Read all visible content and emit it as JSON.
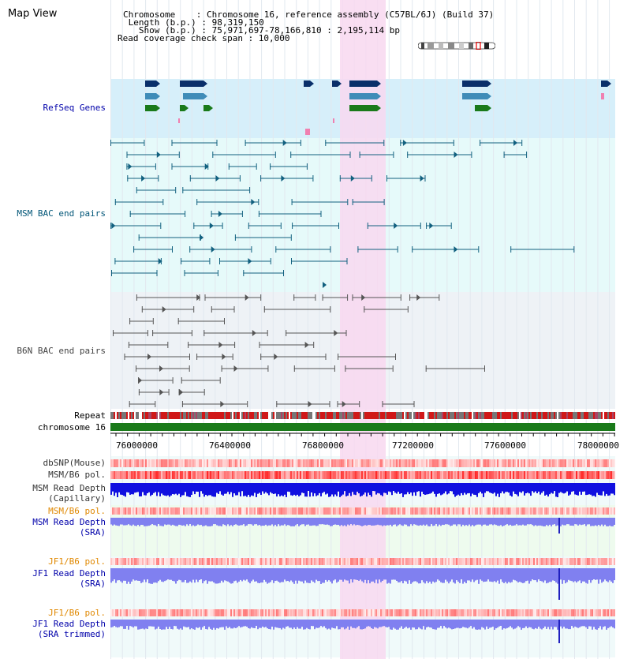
{
  "header": {
    "title": "Map View",
    "info_lines": [
      "Chromosome    : Chromosome 16, reference assembly (C57BL/6J) (Build 37)",
      " Length (b.p.) : 98,319,150",
      "   Show (b.p.) : 75,971,697-78,166,810 : 2,195,114 bp",
      "Read coverage check span : 10,000"
    ]
  },
  "tracks": {
    "refseq_label": "RefSeq Genes",
    "msm_bac_label": "MSM BAC end pairs",
    "b6n_bac_label": "B6N BAC end pairs",
    "repeat_label": "Repeat",
    "chromosome_label": "chromosome 16",
    "dbsnp_label": "dbSNP(Mouse)",
    "msm_b6_pol_label": "MSM/B6 pol.",
    "msm_read_depth_cap_label_1": "MSM Read Depth",
    "msm_read_depth_cap_label_2": "(Capillary)",
    "msm_b6_pol2_label": "MSM/B6 pol.",
    "msm_read_depth_sra_label_1": "MSM Read Depth",
    "msm_read_depth_sra_label_2": "(SRA)",
    "jf1_b6_pol_label": "JF1/B6 pol.",
    "jf1_read_depth_label_1": "JF1 Read Depth",
    "jf1_read_depth_label_2": "(SRA)",
    "jf1_b6_pol2_label": "JF1/B6 pol.",
    "jf1_read_depth_trim_label_1": "JF1 Read Depth",
    "jf1_read_depth_trim_label_2": "(SRA trimmed)"
  },
  "axis": {
    "ticks": [
      "76000000",
      "76400000",
      "76800000",
      "77200000",
      "77600000",
      "78000000"
    ]
  },
  "colors": {
    "highlight": "#f8d8f0",
    "refseq_bg": "#d6effa",
    "msm_bg": "#e6fafa",
    "b6n_bg": "#eef2f6",
    "gene_dark": "#0a2f6a",
    "gene_mid": "#3f8cb8",
    "gene_green": "#1a7a1a",
    "msm_line": "#11607f",
    "b6n_line": "#555555",
    "chromosome": "#1a7a1a",
    "depth_blue": "#1010e0",
    "depth_light": "#8080f0"
  }
}
